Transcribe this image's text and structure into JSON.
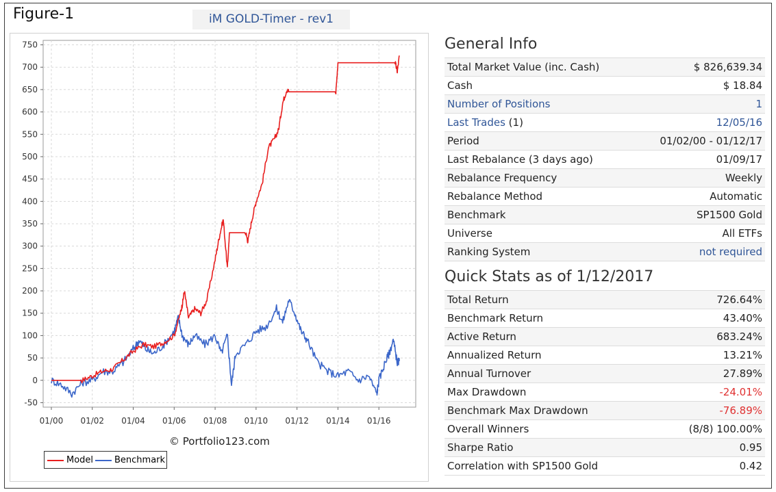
{
  "figure_label": "Figure-1",
  "model_title": "iM GOLD-Timer - rev1",
  "copyright": "© Portfolio123.com",
  "colors": {
    "model": "#e81e1e",
    "benchmark": "#3b66c9",
    "link": "#2f5597",
    "negative": "#e03131"
  },
  "chart_data": {
    "type": "line",
    "y_ticks": [
      "750",
      "700",
      "650",
      "600",
      "550",
      "500",
      "450",
      "400",
      "350",
      "300",
      "250",
      "200",
      "150",
      "100",
      "50",
      "0",
      "-50"
    ],
    "x_ticks": [
      "01/00",
      "01/02",
      "01/04",
      "01/06",
      "01/08",
      "01/10",
      "01/12",
      "01/14",
      "01/16"
    ],
    "ylim": [
      -60,
      760
    ],
    "xlim": [
      1999.6,
      2017.8
    ],
    "grid": true,
    "legend_position": "bottom-left",
    "series": [
      {
        "name": "Model",
        "x": [
          2000.0,
          2001.0,
          2001.5,
          2002.0,
          2002.5,
          2003.0,
          2003.5,
          2004.0,
          2004.5,
          2005.0,
          2005.5,
          2006.0,
          2006.3,
          2006.4,
          2006.5,
          2006.7,
          2007.0,
          2007.3,
          2007.6,
          2008.0,
          2008.2,
          2008.4,
          2008.6,
          2008.7,
          2008.8,
          2009.0,
          2009.5,
          2009.6,
          2009.8,
          2010.0,
          2010.3,
          2010.6,
          2010.9,
          2011.1,
          2011.3,
          2011.5,
          2011.6,
          2012.0,
          2012.5,
          2013.0,
          2013.5,
          2013.9,
          2014.0,
          2014.5,
          2015.0,
          2015.5,
          2016.0,
          2016.5,
          2016.8,
          2016.9,
          2017.0
        ],
        "values": [
          0,
          0,
          0,
          10,
          20,
          25,
          45,
          65,
          80,
          75,
          85,
          100,
          150,
          170,
          200,
          140,
          160,
          150,
          180,
          270,
          320,
          360,
          250,
          330,
          330,
          330,
          330,
          310,
          360,
          400,
          440,
          520,
          540,
          560,
          620,
          650,
          645,
          645,
          645,
          645,
          645,
          645,
          710,
          710,
          710,
          710,
          710,
          710,
          710,
          690,
          726
        ]
      },
      {
        "name": "Benchmark",
        "x": [
          2000.0,
          2000.5,
          2001.0,
          2001.5,
          2002.0,
          2002.5,
          2003.0,
          2003.5,
          2004.0,
          2004.3,
          2004.6,
          2005.0,
          2005.5,
          2006.0,
          2006.2,
          2006.4,
          2006.7,
          2007.0,
          2007.5,
          2008.0,
          2008.3,
          2008.6,
          2008.8,
          2009.0,
          2009.5,
          2010.0,
          2010.5,
          2011.0,
          2011.3,
          2011.6,
          2011.9,
          2012.2,
          2012.5,
          2013.0,
          2013.5,
          2014.0,
          2014.5,
          2015.0,
          2015.5,
          2015.9,
          2016.0,
          2016.3,
          2016.5,
          2016.7,
          2016.9,
          2017.0
        ],
        "values": [
          0,
          -10,
          -30,
          -5,
          0,
          20,
          20,
          40,
          70,
          90,
          70,
          60,
          80,
          110,
          140,
          100,
          80,
          100,
          80,
          100,
          60,
          100,
          -10,
          60,
          80,
          110,
          120,
          160,
          130,
          180,
          150,
          110,
          90,
          40,
          20,
          10,
          20,
          0,
          10,
          -30,
          0,
          40,
          60,
          90,
          40,
          43
        ]
      }
    ]
  },
  "general_info": {
    "title": "General Info",
    "rows": [
      {
        "label": "Total Market Value (inc. Cash)",
        "value": "$ 826,639.34",
        "link": false
      },
      {
        "label": "Cash",
        "value": "$ 18.84",
        "link": false
      },
      {
        "label": "Number of Positions",
        "value": "1",
        "link": true
      },
      {
        "label": "Last Trades",
        "label_suffix": " (1)",
        "value": "12/05/16",
        "link": true
      },
      {
        "label": "Period",
        "value": "01/02/00 - 01/12/17",
        "link": false
      },
      {
        "label": "Last Rebalance (3 days ago)",
        "value": "01/09/17",
        "link": false
      },
      {
        "label": "Rebalance Frequency",
        "value": "Weekly",
        "link": false
      },
      {
        "label": "Rebalance Method",
        "value": "Automatic",
        "link": false
      },
      {
        "label": "Benchmark",
        "value": "SP1500 Gold",
        "link": false
      },
      {
        "label": "Universe",
        "value": "All ETFs",
        "link": false
      },
      {
        "label": "Ranking System",
        "value": "not required",
        "link": false,
        "value_link": true
      }
    ]
  },
  "quick_stats": {
    "title": "Quick Stats as of 1/12/2017",
    "rows": [
      {
        "label": "Total Return",
        "value": "726.64%"
      },
      {
        "label": "Benchmark Return",
        "value": "43.40%"
      },
      {
        "label": "Active Return",
        "value": "683.24%"
      },
      {
        "label": "Annualized Return",
        "value": "13.21%"
      },
      {
        "label": "Annual Turnover",
        "value": "27.89%"
      },
      {
        "label": "Max Drawdown",
        "value": "-24.01%",
        "negative": true
      },
      {
        "label": "Benchmark Max Drawdown",
        "value": "-76.89%",
        "negative": true
      },
      {
        "label": "Overall Winners",
        "value": "(8/8) 100.00%"
      },
      {
        "label": "Sharpe Ratio",
        "value": "0.95"
      },
      {
        "label": "Correlation with SP1500 Gold",
        "value": "0.42"
      }
    ]
  }
}
